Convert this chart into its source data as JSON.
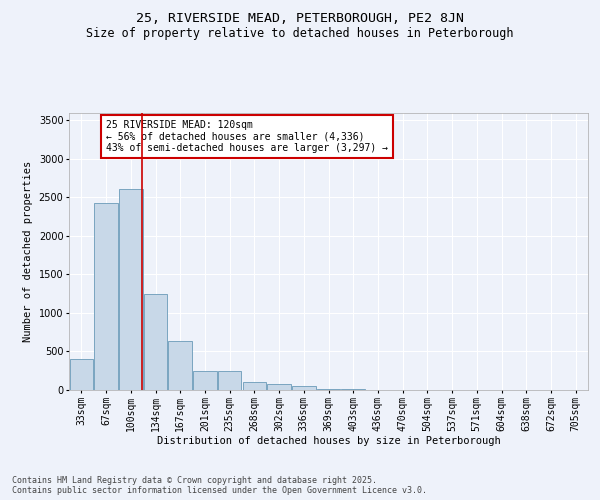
{
  "title": "25, RIVERSIDE MEAD, PETERBOROUGH, PE2 8JN",
  "subtitle": "Size of property relative to detached houses in Peterborough",
  "xlabel": "Distribution of detached houses by size in Peterborough",
  "ylabel": "Number of detached properties",
  "categories": [
    "33sqm",
    "67sqm",
    "100sqm",
    "134sqm",
    "167sqm",
    "201sqm",
    "235sqm",
    "268sqm",
    "302sqm",
    "336sqm",
    "369sqm",
    "403sqm",
    "436sqm",
    "470sqm",
    "504sqm",
    "537sqm",
    "571sqm",
    "604sqm",
    "638sqm",
    "672sqm",
    "705sqm"
  ],
  "values": [
    400,
    2420,
    2610,
    1250,
    630,
    250,
    250,
    100,
    75,
    50,
    10,
    10,
    5,
    0,
    0,
    0,
    0,
    0,
    0,
    0,
    0
  ],
  "bar_color": "#c8d8e8",
  "bar_edge_color": "#6a9ab8",
  "vline_x": 2.45,
  "vline_color": "#cc0000",
  "annotation_text": "25 RIVERSIDE MEAD: 120sqm\n← 56% of detached houses are smaller (4,336)\n43% of semi-detached houses are larger (3,297) →",
  "annotation_box_color": "#cc0000",
  "ylim": [
    0,
    3600
  ],
  "yticks": [
    0,
    500,
    1000,
    1500,
    2000,
    2500,
    3000,
    3500
  ],
  "footer_text": "Contains HM Land Registry data © Crown copyright and database right 2025.\nContains public sector information licensed under the Open Government Licence v3.0.",
  "bg_color": "#eef2fa",
  "plot_bg_color": "#eef2fa",
  "grid_color": "#ffffff",
  "title_fontsize": 9.5,
  "subtitle_fontsize": 8.5,
  "axis_label_fontsize": 7.5,
  "tick_fontsize": 7,
  "annotation_fontsize": 7,
  "footer_fontsize": 6
}
